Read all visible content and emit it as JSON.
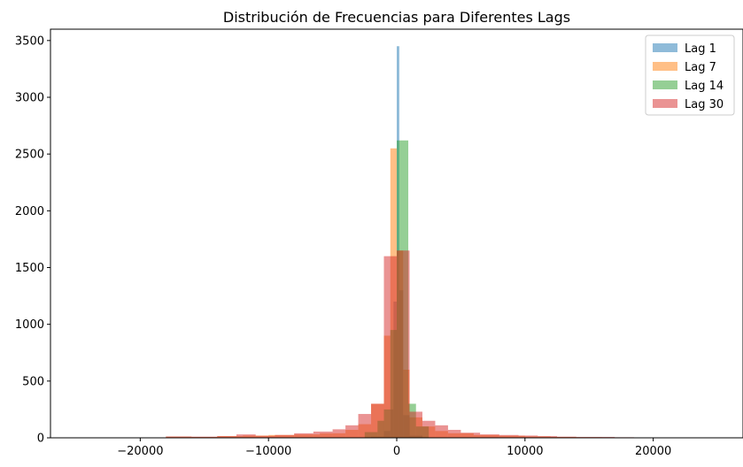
{
  "chart_data": {
    "type": "bar",
    "title": "Distribución de Frecuencias para Diferentes Lags",
    "xlabel": "",
    "ylabel": "",
    "xlim": [
      -27000,
      27000
    ],
    "ylim": [
      0,
      3600
    ],
    "xticks": [
      -20000,
      -10000,
      0,
      10000,
      20000
    ],
    "xtick_labels": [
      "−20000",
      "−10000",
      "0",
      "10000",
      "20000"
    ],
    "yticks": [
      0,
      500,
      1000,
      1500,
      2000,
      2500,
      3000,
      3500
    ],
    "ytick_labels": [
      "0",
      "500",
      "1000",
      "1500",
      "2000",
      "2500",
      "3000",
      "3500"
    ],
    "legend_position": "top-right",
    "alpha": 0.5,
    "series": [
      {
        "name": "Lag 1",
        "color": "#1f77b4",
        "bins": [
          [
            -2000,
            -1000,
            10
          ],
          [
            -1000,
            -500,
            60
          ],
          [
            -500,
            -250,
            250
          ],
          [
            -250,
            0,
            1200
          ],
          [
            0,
            200,
            3450
          ],
          [
            200,
            500,
            1300
          ],
          [
            500,
            1000,
            200
          ],
          [
            1000,
            2000,
            20
          ]
        ]
      },
      {
        "name": "Lag 7",
        "color": "#ff7f0e",
        "bins": [
          [
            -18000,
            -16000,
            10
          ],
          [
            -16000,
            -14000,
            8
          ],
          [
            -14000,
            -12000,
            15
          ],
          [
            -12000,
            -10000,
            20
          ],
          [
            -10000,
            -8000,
            25
          ],
          [
            -8000,
            -6000,
            30
          ],
          [
            -6000,
            -4000,
            40
          ],
          [
            -4000,
            -3000,
            70
          ],
          [
            -3000,
            -2000,
            120
          ],
          [
            -2000,
            -1000,
            300
          ],
          [
            -1000,
            -500,
            900
          ],
          [
            -500,
            0,
            2550
          ],
          [
            0,
            500,
            1650
          ],
          [
            500,
            1000,
            600
          ],
          [
            1000,
            2000,
            180
          ],
          [
            2000,
            3000,
            100
          ],
          [
            3000,
            4000,
            60
          ],
          [
            4000,
            6000,
            40
          ],
          [
            6000,
            8000,
            25
          ],
          [
            8000,
            10000,
            18
          ],
          [
            10000,
            12000,
            12
          ],
          [
            12000,
            14000,
            8
          ],
          [
            14000,
            16000,
            5
          ]
        ]
      },
      {
        "name": "Lag 14",
        "color": "#2ca02c",
        "bins": [
          [
            -2500,
            -1500,
            50
          ],
          [
            -1500,
            -1000,
            150
          ],
          [
            -1000,
            -500,
            250
          ],
          [
            -500,
            0,
            950
          ],
          [
            0,
            900,
            2620
          ],
          [
            900,
            1500,
            300
          ],
          [
            1500,
            2500,
            100
          ]
        ]
      },
      {
        "name": "Lag 30",
        "color": "#d62728",
        "bins": [
          [
            -18000,
            -16000,
            12
          ],
          [
            -16000,
            -14000,
            10
          ],
          [
            -14000,
            -12500,
            15
          ],
          [
            -12500,
            -11000,
            30
          ],
          [
            -11000,
            -9500,
            18
          ],
          [
            -9500,
            -8000,
            25
          ],
          [
            -8000,
            -6500,
            40
          ],
          [
            -6500,
            -5000,
            55
          ],
          [
            -5000,
            -4000,
            75
          ],
          [
            -4000,
            -3000,
            110
          ],
          [
            -3000,
            -2000,
            210
          ],
          [
            -2000,
            -1000,
            300
          ],
          [
            -1000,
            0,
            1600
          ],
          [
            0,
            1000,
            1650
          ],
          [
            1000,
            2000,
            230
          ],
          [
            2000,
            3000,
            150
          ],
          [
            3000,
            4000,
            110
          ],
          [
            4000,
            5000,
            70
          ],
          [
            5000,
            6500,
            45
          ],
          [
            6500,
            8000,
            30
          ],
          [
            8000,
            9500,
            25
          ],
          [
            9500,
            11000,
            20
          ],
          [
            11000,
            12500,
            15
          ],
          [
            12500,
            14000,
            10
          ],
          [
            14000,
            15500,
            8
          ],
          [
            15500,
            17000,
            8
          ],
          [
            17000,
            18500,
            5
          ]
        ]
      }
    ]
  }
}
